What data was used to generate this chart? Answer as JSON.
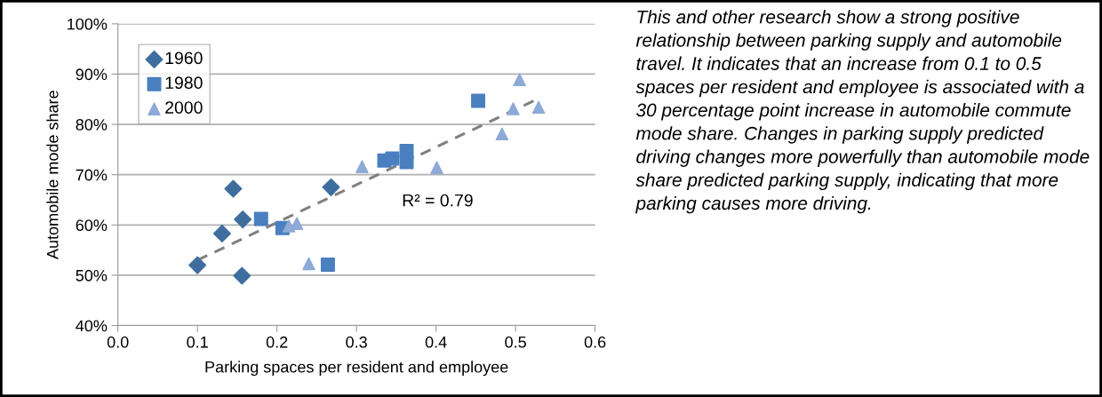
{
  "chart_data": {
    "type": "scatter",
    "xlabel": "Parking spaces per resident and employee",
    "ylabel": "Automobile mode share",
    "xlim": [
      0,
      0.6
    ],
    "xticks": [
      {
        "value": 0,
        "label": "0.0"
      },
      {
        "value": 0.1,
        "label": "0.1"
      },
      {
        "value": 0.2,
        "label": "0.2"
      },
      {
        "value": 0.3,
        "label": "0.3"
      },
      {
        "value": 0.4,
        "label": "0.4"
      },
      {
        "value": 0.5,
        "label": "0.5"
      },
      {
        "value": 0.6,
        "label": "0.6"
      }
    ],
    "ylim": [
      40,
      100
    ],
    "yticks": [
      {
        "value": 40,
        "label": "40%"
      },
      {
        "value": 50,
        "label": "50%"
      },
      {
        "value": 60,
        "label": "60%"
      },
      {
        "value": 70,
        "label": "70%"
      },
      {
        "value": 80,
        "label": "80%"
      },
      {
        "value": 90,
        "label": "90%"
      },
      {
        "value": 100,
        "label": "100%"
      }
    ],
    "grid": "y",
    "legend": "top left",
    "series": [
      {
        "name": "1960",
        "color": "#3f6e9e",
        "marker": "diamond",
        "x": [
          0.1,
          0.131,
          0.145,
          0.157,
          0.156,
          0.268
        ],
        "values": [
          52,
          58.3,
          67.2,
          61.1,
          49.9,
          67.5
        ]
      },
      {
        "name": "1980",
        "color": "#4a7fc0",
        "marker": "square",
        "x": [
          0.18,
          0.207,
          0.264,
          0.335,
          0.345,
          0.363,
          0.363,
          0.453
        ],
        "values": [
          61.2,
          59.4,
          52.1,
          72.8,
          73.2,
          74.7,
          72.5,
          84.7
        ]
      },
      {
        "name": "2000",
        "color": "#8eaad6",
        "marker": "triangle",
        "x": [
          0.215,
          0.225,
          0.24,
          0.307,
          0.401,
          0.483,
          0.497,
          0.505,
          0.529
        ],
        "values": [
          59.8,
          60.3,
          52.3,
          71.6,
          71.4,
          78.1,
          83.1,
          88.9,
          83.4
        ]
      },
      {
        "type": "line",
        "color": "#808080",
        "line_style": "dashed",
        "marker": "none",
        "x": [
          0.1,
          0.527
        ],
        "values": [
          53,
          85
        ]
      }
    ],
    "annotations": [
      "R² = 0.79",
      "This and other research show a strong positive relationship between parking supply and automobile travel. It indicates that an increase from 0.1 to 0.5 spaces per resident and employee is associated with a 30 percentage point increase in automobile commute mode share. Changes in parking supply predicted driving changes more powerfully than automobile mode share predicted parking supply, indicating that more parking causes more driving."
    ]
  }
}
